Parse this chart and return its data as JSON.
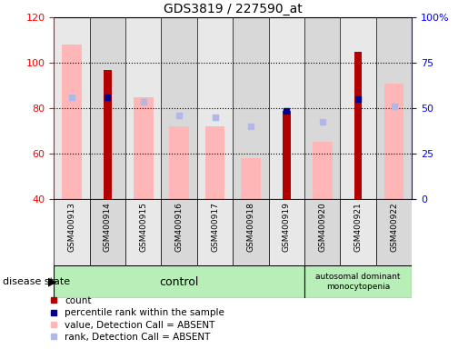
{
  "title": "GDS3819 / 227590_at",
  "samples": [
    "GSM400913",
    "GSM400914",
    "GSM400915",
    "GSM400916",
    "GSM400917",
    "GSM400918",
    "GSM400919",
    "GSM400920",
    "GSM400921",
    "GSM400922"
  ],
  "count": [
    null,
    97,
    null,
    null,
    null,
    null,
    79,
    null,
    105,
    null
  ],
  "percentile_rank": [
    null,
    85,
    null,
    null,
    null,
    null,
    79,
    null,
    84,
    null
  ],
  "value_absent": [
    108,
    null,
    85,
    72,
    72,
    58,
    null,
    65,
    null,
    91
  ],
  "rank_absent": [
    85,
    null,
    83,
    77,
    76,
    72,
    null,
    74,
    null,
    81
  ],
  "ylim_left": [
    40,
    120
  ],
  "ylim_right": [
    0,
    100
  ],
  "yticks_left": [
    40,
    60,
    80,
    100,
    120
  ],
  "yticks_right": [
    0,
    25,
    50,
    75,
    100
  ],
  "ytick_labels_right": [
    "0",
    "25",
    "50",
    "75",
    "100%"
  ],
  "count_color": "#b20000",
  "percentile_color": "#00008b",
  "value_absent_color": "#ffb6b6",
  "rank_absent_color": "#b0b8e8",
  "n_control": 7,
  "disease_label": "autosomal dominant\nmonocytopenia",
  "control_label": "control",
  "group_label": "disease state",
  "col_bg_even": "#e8e8e8",
  "col_bg_odd": "#d8d8d8",
  "plot_bg": "#ffffff",
  "green_bg": "#b8eeb8",
  "legend_items": [
    "count",
    "percentile rank within the sample",
    "value, Detection Call = ABSENT",
    "rank, Detection Call = ABSENT"
  ],
  "legend_colors": [
    "#b20000",
    "#00008b",
    "#ffb6b6",
    "#b0b8e8"
  ]
}
